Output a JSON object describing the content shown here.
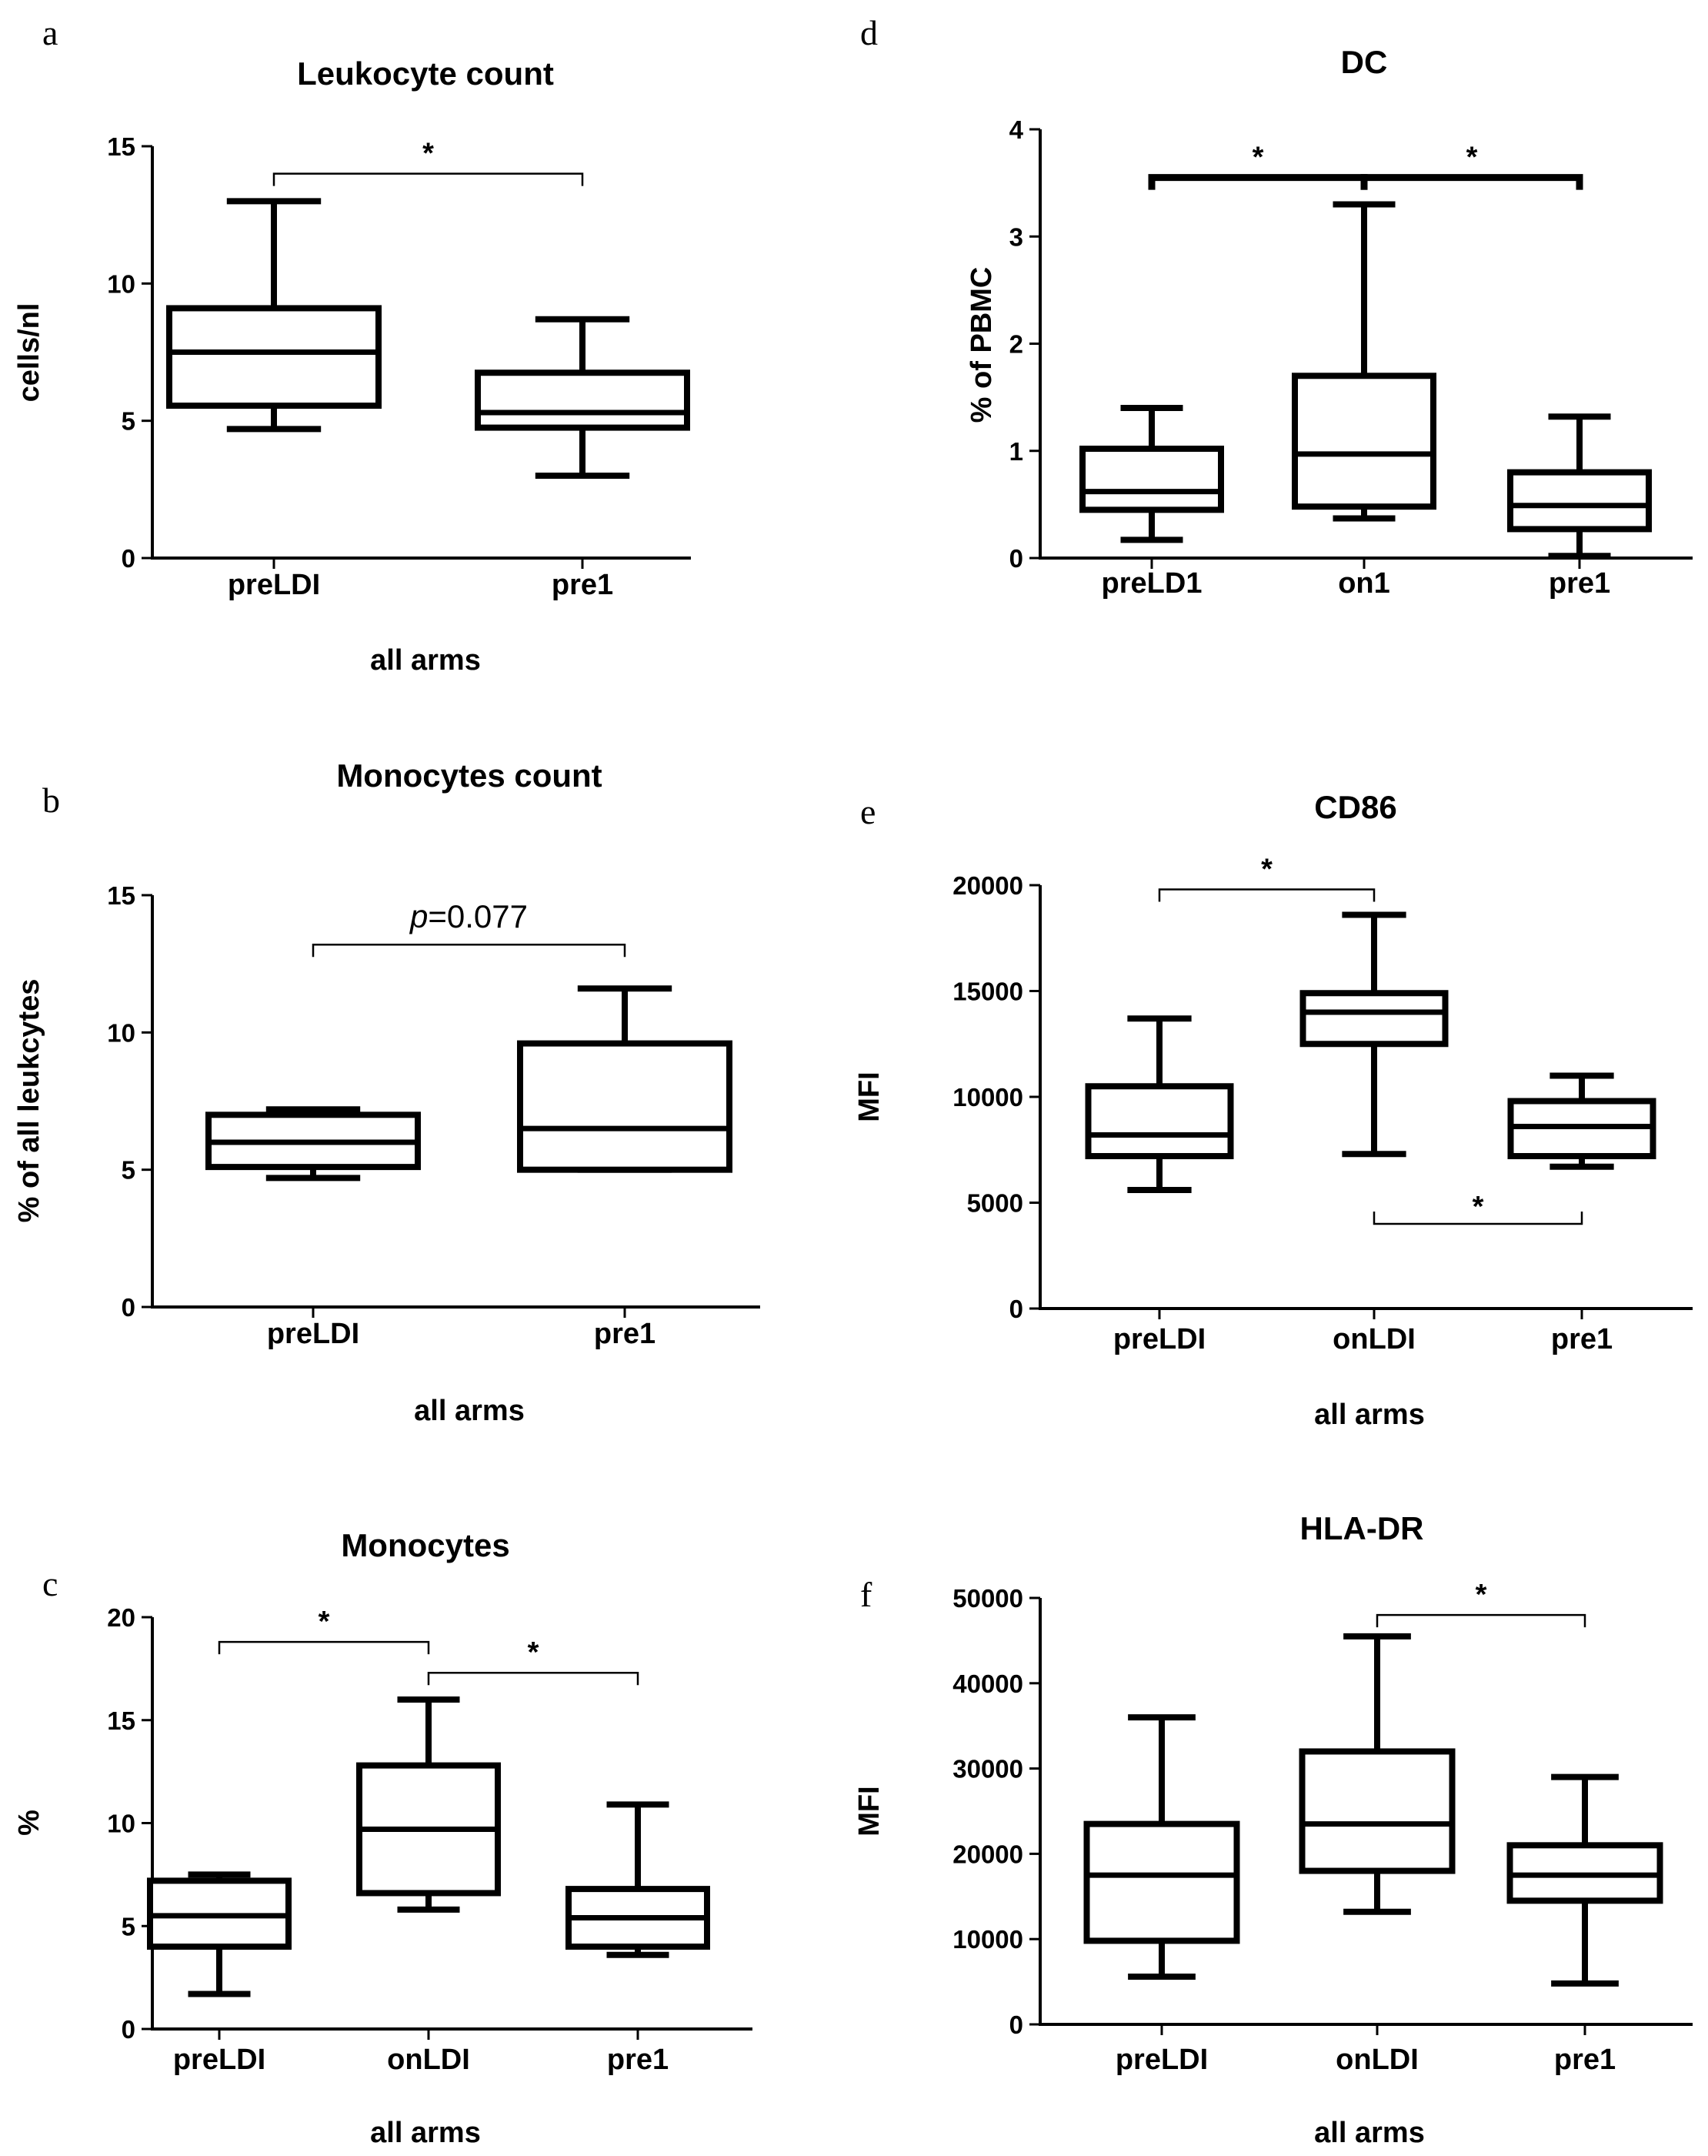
{
  "chart_data": [
    {
      "id": "a",
      "panel_label": "a",
      "type": "boxplot",
      "title": "Leukocyte count",
      "ylabel": "cells/nl",
      "xlabel": "all arms",
      "ylim": [
        0,
        15
      ],
      "yticks": [
        "0",
        "5",
        "10",
        "15"
      ],
      "categories": [
        "preLDI",
        "pre1"
      ],
      "boxes": [
        {
          "min": 4.7,
          "q1": 5.55,
          "median": 7.5,
          "q3": 9.1,
          "max": 13.0
        },
        {
          "min": 3.0,
          "q1": 4.75,
          "median": 5.3,
          "q3": 6.75,
          "max": 8.7
        }
      ],
      "significance": [
        {
          "from": 0,
          "to": 1,
          "label": "*",
          "y": 14.0
        }
      ]
    },
    {
      "id": "b",
      "panel_label": "b",
      "type": "boxplot",
      "title": "Monocytes count",
      "ylabel": "% of all leukcytes",
      "xlabel": "all arms",
      "ylim": [
        0,
        15
      ],
      "yticks": [
        "0",
        "5",
        "10",
        "15"
      ],
      "categories": [
        "preLDI",
        "pre1"
      ],
      "boxes": [
        {
          "min": 4.7,
          "q1": 5.1,
          "median": 6.0,
          "q3": 7.0,
          "max": 7.2
        },
        {
          "min": 5.0,
          "q1": 5.0,
          "median": 6.5,
          "q3": 9.6,
          "max": 11.6
        }
      ],
      "significance": [
        {
          "from": 0,
          "to": 1,
          "label_italic": "p",
          "label": "=0.077",
          "y": 13.2
        }
      ]
    },
    {
      "id": "c",
      "panel_label": "c",
      "type": "boxplot",
      "title": "Monocytes",
      "ylabel": "%",
      "xlabel": "all arms",
      "ylim": [
        0,
        20
      ],
      "yticks": [
        "0",
        "5",
        "10",
        "15",
        "20"
      ],
      "categories": [
        "preLDI",
        "onLDI",
        "pre1"
      ],
      "boxes": [
        {
          "min": 1.7,
          "q1": 4.0,
          "median": 5.5,
          "q3": 7.2,
          "max": 7.5
        },
        {
          "min": 5.8,
          "q1": 6.6,
          "median": 9.7,
          "q3": 12.8,
          "max": 16.0
        },
        {
          "min": 3.6,
          "q1": 4.0,
          "median": 5.4,
          "q3": 6.8,
          "max": 10.9
        }
      ],
      "significance": [
        {
          "from": 0,
          "to": 1,
          "label": "*",
          "y": 18.8
        },
        {
          "from": 1,
          "to": 2,
          "label": "*",
          "y": 17.3
        }
      ]
    },
    {
      "id": "d",
      "panel_label": "d",
      "type": "boxplot",
      "title": "DC",
      "ylabel": "% of PBMC",
      "xlabel": "",
      "ylim": [
        0,
        4
      ],
      "yticks": [
        "0",
        "1",
        "2",
        "3",
        "4"
      ],
      "categories": [
        "preLD1",
        "on1",
        "pre1"
      ],
      "boxes": [
        {
          "min": 0.17,
          "q1": 0.45,
          "median": 0.62,
          "q3": 1.02,
          "max": 1.4
        },
        {
          "min": 0.37,
          "q1": 0.48,
          "median": 0.97,
          "q3": 1.7,
          "max": 3.3
        },
        {
          "min": 0.02,
          "q1": 0.27,
          "median": 0.49,
          "q3": 0.8,
          "max": 1.32
        }
      ],
      "significance": [
        {
          "from": 0,
          "to": 1,
          "label": "*",
          "y": 3.55,
          "bold": true
        },
        {
          "from": 1,
          "to": 2,
          "label": "*",
          "y": 3.55,
          "bold": true
        }
      ]
    },
    {
      "id": "e",
      "panel_label": "e",
      "type": "boxplot",
      "title": "CD86",
      "ylabel": "MFI",
      "xlabel": "all arms",
      "ylim": [
        0,
        20000
      ],
      "yticks": [
        "0",
        "5000",
        "10000",
        "15000",
        "20000"
      ],
      "categories": [
        "preLDI",
        "onLDI",
        "pre1"
      ],
      "boxes": [
        {
          "min": 5600,
          "q1": 7200,
          "median": 8200,
          "q3": 10500,
          "max": 13700
        },
        {
          "min": 7300,
          "q1": 12500,
          "median": 14000,
          "q3": 14900,
          "max": 18600
        },
        {
          "min": 6700,
          "q1": 7200,
          "median": 8600,
          "q3": 9800,
          "max": 11000
        }
      ],
      "significance": [
        {
          "from": 0,
          "to": 1,
          "label": "*",
          "y": 19800
        },
        {
          "from": 1,
          "to": 2,
          "label": "*",
          "y": 4000,
          "below": true
        }
      ]
    },
    {
      "id": "f",
      "panel_label": "f",
      "type": "boxplot",
      "title": "HLA-DR",
      "ylabel": "MFI",
      "xlabel": "all arms",
      "ylim": [
        0,
        50000
      ],
      "yticks": [
        "0",
        "10000",
        "20000",
        "30000",
        "40000",
        "50000"
      ],
      "categories": [
        "preLDI",
        "onLDI",
        "pre1"
      ],
      "boxes": [
        {
          "min": 5600,
          "q1": 9800,
          "median": 17500,
          "q3": 23500,
          "max": 36000
        },
        {
          "min": 13200,
          "q1": 18000,
          "median": 23500,
          "q3": 32000,
          "max": 45500
        },
        {
          "min": 4800,
          "q1": 14500,
          "median": 17500,
          "q3": 21000,
          "max": 29000
        }
      ],
      "significance": [
        {
          "from": 1,
          "to": 2,
          "label": "*",
          "y": 48000
        }
      ]
    }
  ]
}
